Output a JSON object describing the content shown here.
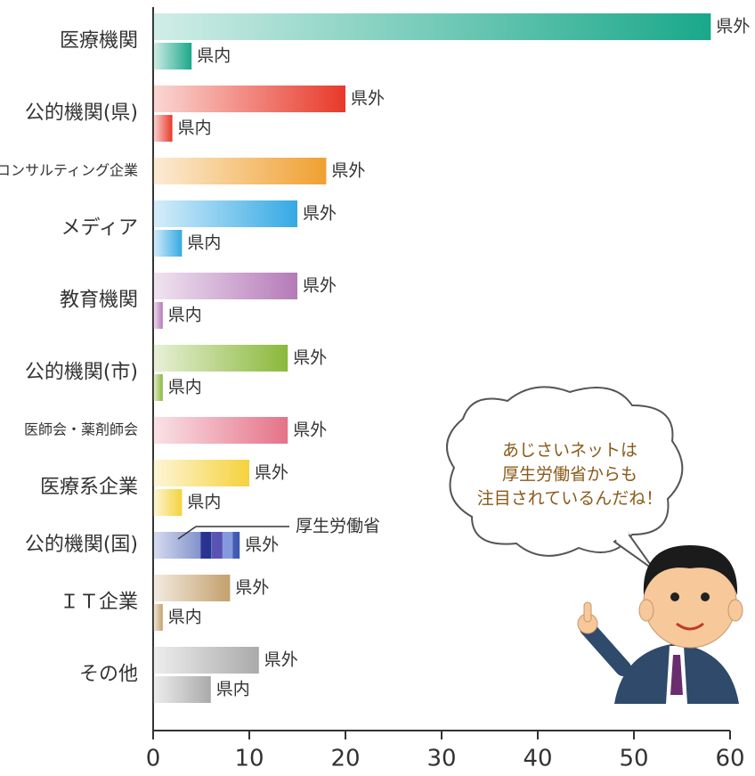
{
  "chart_data": {
    "type": "bar",
    "orientation": "horizontal",
    "categories": [
      "医療機関",
      "公的機関(県)",
      "コンサルティング企業",
      "メディア",
      "教育機関",
      "公的機関(市)",
      "医師会・薬剤師会",
      "医療系企業",
      "公的機関(国)",
      "ＩＴ企業",
      "その他"
    ],
    "category_colors": [
      "#1aa88a",
      "#e8392a",
      "#f0a030",
      "#35a9e4",
      "#b57ab8",
      "#8ab83a",
      "#e57288",
      "#f5d23c",
      "#3b55b0",
      "#c4a06c",
      "#aaaaaa"
    ],
    "series": [
      {
        "name": "県外",
        "values": [
          58,
          20,
          18,
          15,
          15,
          14,
          14,
          10,
          9,
          8,
          11
        ]
      },
      {
        "name": "県内",
        "values": [
          4,
          2,
          null,
          3,
          1,
          1,
          null,
          3,
          null,
          1,
          6
        ]
      }
    ],
    "xlim": [
      0,
      60
    ],
    "xticks": [
      0,
      10,
      20,
      30,
      40,
      50,
      60
    ],
    "annotation": "厚生労働省",
    "speech_bubble": [
      "あじさいネットは",
      "厚生労働省からも",
      "注目されているんだね！"
    ]
  }
}
